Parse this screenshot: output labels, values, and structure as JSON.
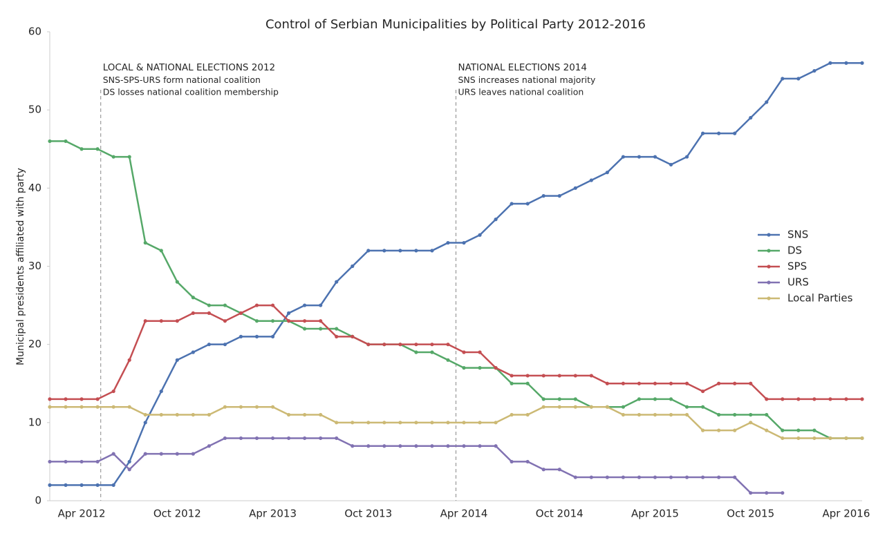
{
  "chart_data": {
    "type": "line",
    "title": "Control of Serbian Municipalities by Political Party 2012-2016",
    "y_label": "Municipal presidents affiliated with party",
    "categories": [
      null,
      null,
      "Apr 2012",
      null,
      null,
      null,
      null,
      null,
      "Oct 2012",
      null,
      null,
      null,
      null,
      null,
      "Apr 2013",
      null,
      null,
      null,
      null,
      null,
      "Oct 2013",
      null,
      null,
      null,
      null,
      null,
      "Apr 2014",
      null,
      null,
      null,
      null,
      null,
      "Oct 2014",
      null,
      null,
      null,
      null,
      null,
      "Apr 2015",
      null,
      null,
      null,
      null,
      null,
      "Oct 2015",
      null,
      null,
      null,
      null,
      null,
      "Apr 2016",
      null
    ],
    "ylim": [
      0,
      60
    ],
    "yticks": [
      0,
      10,
      20,
      30,
      40,
      50,
      60
    ],
    "legend": "right",
    "series": [
      {
        "name": "SNS",
        "color": "#4c72b0",
        "values": [
          2,
          2,
          2,
          2,
          2,
          5,
          10,
          14,
          18,
          19,
          20,
          20,
          21,
          21,
          21,
          24,
          25,
          25,
          28,
          30,
          32,
          32,
          32,
          32,
          32,
          33,
          33,
          34,
          36,
          38,
          38,
          39,
          39,
          40,
          41,
          42,
          44,
          44,
          44,
          43,
          44,
          47,
          47,
          47,
          49,
          51,
          54,
          54,
          55,
          56,
          56,
          56
        ]
      },
      {
        "name": "DS",
        "color": "#55a868",
        "values": [
          46,
          46,
          45,
          45,
          44,
          44,
          33,
          32,
          28,
          26,
          25,
          25,
          24,
          23,
          23,
          23,
          22,
          22,
          22,
          21,
          20,
          20,
          20,
          19,
          19,
          18,
          17,
          17,
          17,
          15,
          15,
          13,
          13,
          13,
          12,
          12,
          12,
          13,
          13,
          13,
          12,
          12,
          11,
          11,
          11,
          11,
          9,
          9,
          9,
          8,
          8,
          8
        ]
      },
      {
        "name": "SPS",
        "color": "#c44e52",
        "values": [
          13,
          13,
          13,
          13,
          14,
          18,
          23,
          23,
          23,
          24,
          24,
          23,
          24,
          25,
          25,
          23,
          23,
          23,
          21,
          21,
          20,
          20,
          20,
          20,
          20,
          20,
          19,
          19,
          17,
          16,
          16,
          16,
          16,
          16,
          16,
          15,
          15,
          15,
          15,
          15,
          15,
          14,
          15,
          15,
          15,
          13,
          13,
          13,
          13,
          13,
          13,
          13
        ]
      },
      {
        "name": "URS",
        "color": "#8172b2",
        "values": [
          5,
          5,
          5,
          5,
          6,
          4,
          6,
          6,
          6,
          6,
          7,
          8,
          8,
          8,
          8,
          8,
          8,
          8,
          8,
          7,
          7,
          7,
          7,
          7,
          7,
          7,
          7,
          7,
          7,
          5,
          5,
          4,
          4,
          3,
          3,
          3,
          3,
          3,
          3,
          3,
          3,
          3,
          3,
          3,
          1,
          1,
          1,
          null,
          null,
          null,
          null,
          null
        ]
      },
      {
        "name": "Local Parties",
        "color": "#ccb974",
        "values": [
          12,
          12,
          12,
          12,
          12,
          12,
          11,
          11,
          11,
          11,
          11,
          12,
          12,
          12,
          12,
          11,
          11,
          11,
          10,
          10,
          10,
          10,
          10,
          10,
          10,
          10,
          10,
          10,
          10,
          11,
          11,
          12,
          12,
          12,
          12,
          12,
          11,
          11,
          11,
          11,
          11,
          9,
          9,
          9,
          10,
          9,
          8,
          8,
          8,
          8,
          8,
          8
        ]
      }
    ],
    "annotations": [
      {
        "x": 3.2,
        "lines": [
          "LOCAL & NATIONAL ELECTIONS 2012",
          "SNS-SPS-URS form national coalition",
          "DS losses national coalition membership"
        ]
      },
      {
        "x": 25.5,
        "lines": [
          "NATIONAL ELECTIONS 2014",
          "SNS increases national majority",
          "URS leaves national coalition"
        ]
      }
    ]
  }
}
